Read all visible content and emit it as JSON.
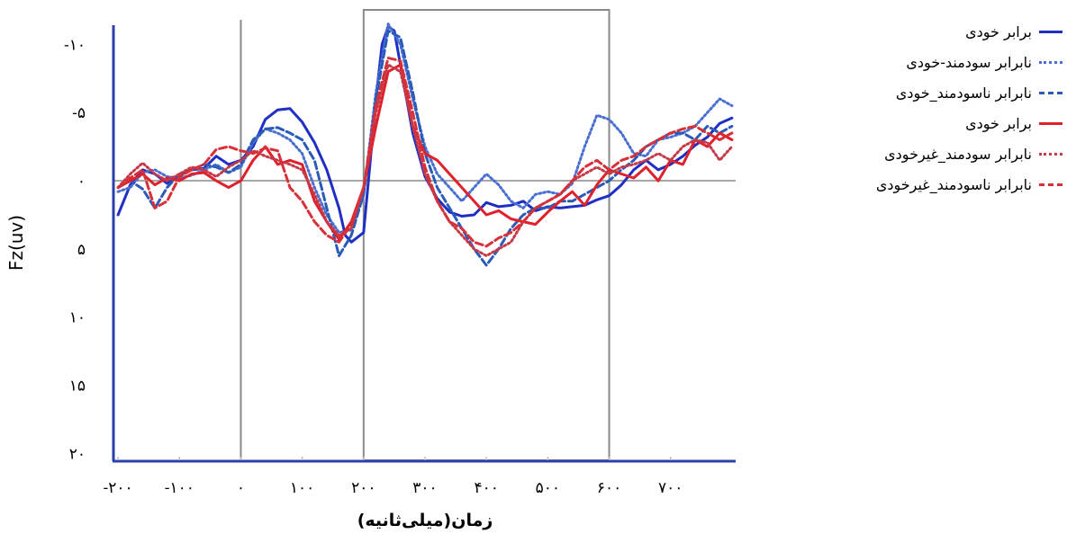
{
  "chart_data": {
    "type": "line",
    "xlabel": "زمان(میلی‌ثانیه)",
    "ylabel": "Fz(uv)",
    "xlim": [
      -200,
      800
    ],
    "ylim": [
      20,
      -12
    ],
    "y_inverted": true,
    "x_ticks": [
      -200,
      -100,
      0,
      100,
      200,
      300,
      400,
      500,
      600,
      700
    ],
    "x_tick_labels": [
      "-۲۰۰",
      "-۱۰۰",
      "۰",
      "۱۰۰",
      "۲۰۰",
      "۳۰۰",
      "۴۰۰",
      "۵۰۰",
      "۶۰۰",
      "۷۰۰"
    ],
    "y_ticks": [
      -10,
      -5,
      0,
      5,
      10,
      15,
      20
    ],
    "y_tick_labels": [
      "-۱۰",
      "-۵",
      "۰",
      "۵",
      "۱۰",
      "۱۵",
      "۲۰"
    ],
    "reference_lines": {
      "x": [
        0,
        200,
        600
      ],
      "y": [
        0
      ]
    },
    "window": [
      200,
      600
    ],
    "legend_position": "right",
    "grid": false,
    "series": [
      {
        "name": "برابر خودی",
        "color": "#1f2fc4",
        "dash": "solid",
        "x": [
          -200,
          -180,
          -160,
          -140,
          -120,
          -100,
          -80,
          -60,
          -40,
          -20,
          0,
          20,
          40,
          60,
          80,
          100,
          120,
          140,
          160,
          170,
          180,
          200,
          210,
          220,
          230,
          240,
          250,
          260,
          280,
          300,
          320,
          340,
          360,
          380,
          400,
          420,
          440,
          460,
          480,
          500,
          520,
          540,
          560,
          580,
          600,
          620,
          640,
          660,
          680,
          700,
          720,
          740,
          760,
          780,
          800
        ],
        "y": [
          2.5,
          0.3,
          -0.8,
          -0.5,
          0.2,
          -0.4,
          -0.8,
          -0.9,
          -1.8,
          -1.2,
          -1.5,
          -2.5,
          -4.5,
          -5.2,
          -5.3,
          -4.3,
          -2.8,
          -0.8,
          2.0,
          4.0,
          4.5,
          3.8,
          -1.0,
          -6.0,
          -10.0,
          -11.3,
          -11.0,
          -8.5,
          -3.5,
          -0.3,
          1.3,
          2.3,
          2.6,
          2.5,
          1.6,
          1.9,
          1.8,
          1.5,
          2.2,
          1.9,
          2.0,
          1.9,
          1.8,
          1.4,
          1.1,
          0.3,
          -0.8,
          -1.5,
          -0.8,
          -1.2,
          -1.8,
          -2.6,
          -3.2,
          -4.2,
          -4.6
        ]
      },
      {
        "name": "نابرابر سودمند-خودی",
        "color": "#4a6fd2",
        "dash": "dot",
        "x": [
          -200,
          -180,
          -160,
          -140,
          -120,
          -100,
          -80,
          -60,
          -40,
          -20,
          0,
          20,
          40,
          60,
          80,
          100,
          120,
          140,
          160,
          180,
          200,
          220,
          240,
          260,
          280,
          300,
          320,
          340,
          360,
          380,
          400,
          420,
          440,
          460,
          480,
          500,
          520,
          540,
          560,
          580,
          600,
          620,
          640,
          660,
          680,
          700,
          720,
          740,
          760,
          780,
          800
        ],
        "y": [
          0.8,
          0.5,
          -0.6,
          -0.8,
          -0.3,
          -0.2,
          -0.4,
          -0.8,
          -1.2,
          -0.6,
          -1.0,
          -2.8,
          -3.8,
          -3.5,
          -3.0,
          -2.0,
          0.5,
          2.5,
          3.8,
          3.6,
          1.0,
          -6.5,
          -11.5,
          -10.0,
          -6.0,
          -2.5,
          -0.5,
          0.5,
          1.5,
          0.5,
          -0.5,
          0.3,
          1.5,
          2.0,
          1.0,
          0.8,
          1.0,
          0.2,
          -2.5,
          -4.8,
          -4.5,
          -3.5,
          -2.0,
          -1.8,
          -3.0,
          -3.2,
          -3.5,
          -4.0,
          -5.0,
          -6.0,
          -5.5
        ]
      },
      {
        "name": "نابرابر ناسودمند_خودی",
        "color": "#2a5bb8",
        "dash": "dash",
        "x": [
          -200,
          -180,
          -160,
          -140,
          -120,
          -100,
          -80,
          -60,
          -40,
          -20,
          0,
          20,
          40,
          60,
          80,
          100,
          120,
          140,
          160,
          180,
          200,
          220,
          240,
          260,
          280,
          300,
          320,
          340,
          360,
          380,
          400,
          420,
          440,
          460,
          480,
          500,
          520,
          540,
          560,
          580,
          600,
          620,
          640,
          660,
          680,
          700,
          720,
          740,
          760,
          780,
          800
        ],
        "y": [
          0.5,
          0.0,
          0.6,
          2.0,
          0.5,
          -0.5,
          -0.8,
          -1.2,
          -1.0,
          -0.6,
          -1.2,
          -3.0,
          -3.8,
          -3.9,
          -3.5,
          -3.0,
          -1.5,
          2.0,
          5.5,
          4.0,
          1.0,
          -6.0,
          -11.0,
          -10.5,
          -6.5,
          -2.0,
          0.5,
          2.0,
          3.5,
          5.0,
          6.2,
          5.0,
          3.5,
          2.5,
          2.0,
          2.0,
          1.5,
          1.5,
          1.0,
          0.5,
          0.0,
          -0.8,
          -1.5,
          -2.5,
          -3.0,
          -3.5,
          -3.5,
          -3.0,
          -4.0,
          -3.5,
          -4.0
        ]
      },
      {
        "name": "برابر خودی",
        "color": "#e0202a",
        "dash": "solid",
        "x": [
          -200,
          -180,
          -160,
          -140,
          -120,
          -100,
          -80,
          -60,
          -40,
          -20,
          0,
          20,
          40,
          60,
          80,
          100,
          120,
          140,
          160,
          180,
          200,
          220,
          240,
          260,
          280,
          300,
          320,
          340,
          360,
          380,
          400,
          420,
          440,
          460,
          480,
          500,
          520,
          540,
          560,
          580,
          600,
          620,
          640,
          660,
          680,
          700,
          720,
          740,
          760,
          780,
          800
        ],
        "y": [
          0.5,
          0.0,
          -0.5,
          0.3,
          -0.2,
          0.0,
          -0.5,
          -0.6,
          0.0,
          0.5,
          0.0,
          -1.5,
          -2.5,
          -1.2,
          -1.5,
          -1.2,
          1.5,
          3.0,
          4.3,
          3.0,
          0.5,
          -4.0,
          -8.0,
          -8.5,
          -4.0,
          -2.0,
          -1.5,
          -0.5,
          0.5,
          1.5,
          2.5,
          2.2,
          2.8,
          3.0,
          3.2,
          2.3,
          1.5,
          0.8,
          1.8,
          0.3,
          -0.8,
          -0.5,
          -0.2,
          -1.0,
          0.0,
          -1.5,
          -1.2,
          -3.0,
          -2.5,
          -3.5,
          -3.0
        ]
      },
      {
        "name": "نابرابر سودمند_غیرخودی",
        "color": "#c43a48",
        "dash": "dot",
        "x": [
          -200,
          -180,
          -160,
          -140,
          -120,
          -100,
          -80,
          -60,
          -40,
          -20,
          0,
          20,
          40,
          60,
          80,
          100,
          120,
          140,
          160,
          180,
          200,
          220,
          240,
          260,
          280,
          300,
          320,
          340,
          360,
          380,
          400,
          420,
          440,
          460,
          480,
          500,
          520,
          540,
          560,
          580,
          600,
          620,
          640,
          660,
          680,
          700,
          720,
          740,
          760,
          780,
          800
        ],
        "y": [
          0.5,
          -0.5,
          -1.3,
          -0.5,
          0.0,
          -0.5,
          -1.0,
          -0.8,
          -0.3,
          -1.0,
          -1.5,
          -2.2,
          -1.8,
          -1.5,
          -1.2,
          -0.8,
          1.0,
          3.0,
          4.0,
          3.5,
          0.5,
          -5.0,
          -8.5,
          -8.0,
          -4.0,
          -0.5,
          1.5,
          3.0,
          4.0,
          5.0,
          5.5,
          5.0,
          4.5,
          3.0,
          2.0,
          1.5,
          1.0,
          0.0,
          -0.5,
          -1.0,
          -0.5,
          -1.0,
          -1.2,
          -1.5,
          -2.0,
          -1.5,
          -2.5,
          -3.0,
          -2.8,
          -1.5,
          -2.5
        ]
      },
      {
        "name": "نابرابر ناسودمند_غیرخودی",
        "color": "#d83038",
        "dash": "dash",
        "x": [
          -200,
          -180,
          -160,
          -140,
          -120,
          -100,
          -80,
          -60,
          -40,
          -20,
          0,
          20,
          40,
          60,
          80,
          100,
          120,
          140,
          160,
          180,
          200,
          220,
          240,
          260,
          280,
          300,
          320,
          340,
          360,
          380,
          400,
          420,
          440,
          460,
          480,
          500,
          520,
          540,
          560,
          580,
          600,
          620,
          640,
          660,
          680,
          700,
          720,
          740,
          760,
          780,
          800
        ],
        "y": [
          0.5,
          -0.2,
          -0.8,
          2.0,
          1.5,
          -0.3,
          -0.8,
          -1.2,
          -2.3,
          -2.5,
          -2.2,
          -2.0,
          -2.4,
          -2.2,
          0.5,
          1.5,
          3.0,
          4.0,
          4.5,
          3.2,
          0.5,
          -5.5,
          -9.0,
          -8.8,
          -5.0,
          -1.0,
          1.5,
          3.0,
          3.5,
          4.5,
          4.8,
          4.2,
          3.8,
          3.0,
          2.0,
          1.5,
          1.0,
          0.0,
          -1.0,
          -1.5,
          -0.8,
          -1.5,
          -1.8,
          -2.5,
          -3.0,
          -3.5,
          -3.8,
          -4.0,
          -3.5,
          -3.0,
          -3.5
        ]
      }
    ]
  }
}
